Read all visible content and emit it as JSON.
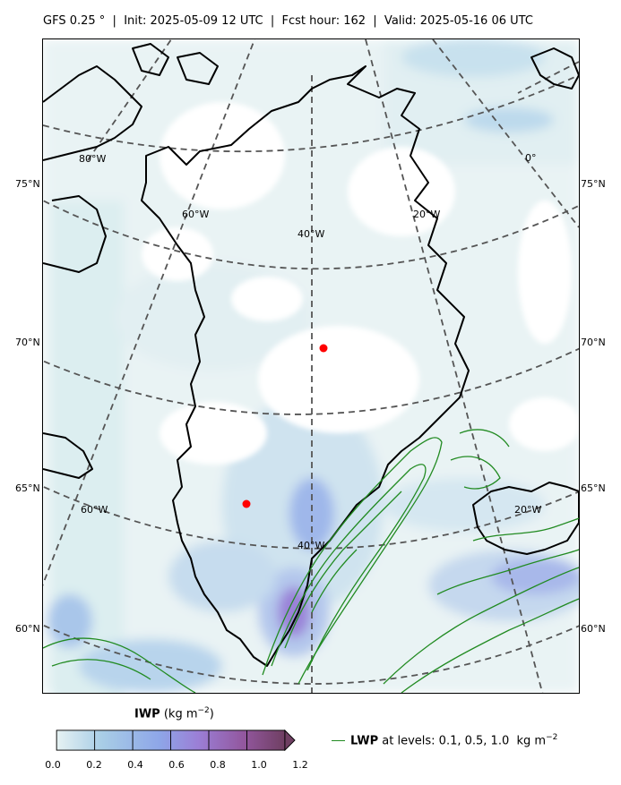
{
  "header": {
    "title": "GFS 0.25 °  |  Init: 2025-05-09 12 UTC  |  Fcst hour: 162  |  Valid: 2025-05-16 06 UTC"
  },
  "map": {
    "lat_labels_left": [
      "75°N",
      "70°N",
      "65°N",
      "60°N"
    ],
    "lat_labels_right": [
      "75°N",
      "70°N",
      "65°N",
      "60°N"
    ],
    "lon_labels_north": [
      "80°W",
      "60°W",
      "40°W",
      "20°W",
      "0°"
    ],
    "lon_labels_south": [
      "60°W",
      "40°W",
      "20°W"
    ],
    "coastline_color": "#000000",
    "gridline_color": "#555555",
    "ice_colormap": [
      "#e6f2f3",
      "#a8cde6",
      "#8ea6e8",
      "#9b7fd6",
      "#92579e",
      "#6f3f62"
    ],
    "lwp_contour_color": "#228B22",
    "marker_color": "#ff0000",
    "markers": 2
  },
  "colorbar": {
    "title_bold": "IWP",
    "title_units": " (kg m",
    "title_sup": "−2",
    "title_end": ")",
    "ticks": [
      "0.0",
      "0.2",
      "0.4",
      "0.6",
      "0.8",
      "1.0",
      "1.2"
    ],
    "extend": "max"
  },
  "legend": {
    "bold": "LWP",
    "text": " at levels: 0.1, 0.5, 1.0  kg m",
    "sup": "−2"
  }
}
